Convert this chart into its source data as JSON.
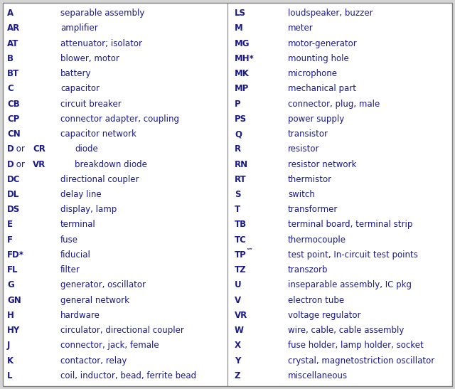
{
  "bg_color": "#d4d4d4",
  "border_color": "#808080",
  "inner_bg": "#ffffff",
  "text_color": "#1a1a8c",
  "font_size": 8.5,
  "left_col": [
    [
      "A",
      "separable assembly"
    ],
    [
      "AR",
      "amplifier"
    ],
    [
      "AT",
      "attenuator; isolator"
    ],
    [
      "B",
      "blower, motor"
    ],
    [
      "BT",
      "battery"
    ],
    [
      "C",
      "capacitor"
    ],
    [
      "CB",
      "circuit breaker"
    ],
    [
      "CP",
      "connector adapter, coupling"
    ],
    [
      "CN",
      "capacitor network"
    ],
    [
      "D or CR",
      "diode"
    ],
    [
      "D or VR",
      "breakdown diode"
    ],
    [
      "DC",
      "directional coupler"
    ],
    [
      "DL",
      "delay line"
    ],
    [
      "DS",
      "display, lamp"
    ],
    [
      "E",
      "terminal"
    ],
    [
      "F",
      "fuse"
    ],
    [
      "FD*",
      "fiducial"
    ],
    [
      "FL",
      "filter"
    ],
    [
      "G",
      "generator, oscillator"
    ],
    [
      "GN",
      "general network"
    ],
    [
      "H",
      "hardware"
    ],
    [
      "HY",
      "circulator, directional coupler"
    ],
    [
      "J",
      "connector, jack, female"
    ],
    [
      "K",
      "contactor, relay"
    ],
    [
      "L",
      "coil, inductor, bead, ferrite bead"
    ]
  ],
  "right_col": [
    [
      "LS",
      "loudspeaker, buzzer"
    ],
    [
      "M",
      "meter"
    ],
    [
      "MG",
      "motor-generator"
    ],
    [
      "MH*",
      "mounting hole"
    ],
    [
      "MK",
      "microphone"
    ],
    [
      "MP",
      "mechanical part"
    ],
    [
      "P",
      "connector, plug, male"
    ],
    [
      "PS",
      "power supply"
    ],
    [
      "Q",
      "transistor"
    ],
    [
      "R",
      "resistor"
    ],
    [
      "RN",
      "resistor network"
    ],
    [
      "RT",
      "thermistor"
    ],
    [
      "S",
      "switch"
    ],
    [
      "T",
      "transformer"
    ],
    [
      "TB",
      "terminal board, terminal strip"
    ],
    [
      "TC",
      "thermocouple"
    ],
    [
      "TP",
      "test point, In-circuit test points"
    ],
    [
      "TZ",
      "transzorb"
    ],
    [
      "U",
      "inseparable assembly, IC pkg"
    ],
    [
      "V",
      "electron tube"
    ],
    [
      "VR",
      "voltage regulator"
    ],
    [
      "W",
      "wire, cable, cable assembly"
    ],
    [
      "X",
      "fuse holder, lamp holder, socket"
    ],
    [
      "Y",
      "crystal, magnetostriction oscillator"
    ],
    [
      "Z",
      "miscellaneous"
    ]
  ],
  "figsize": [
    6.4,
    5.47
  ],
  "dpi": 100
}
